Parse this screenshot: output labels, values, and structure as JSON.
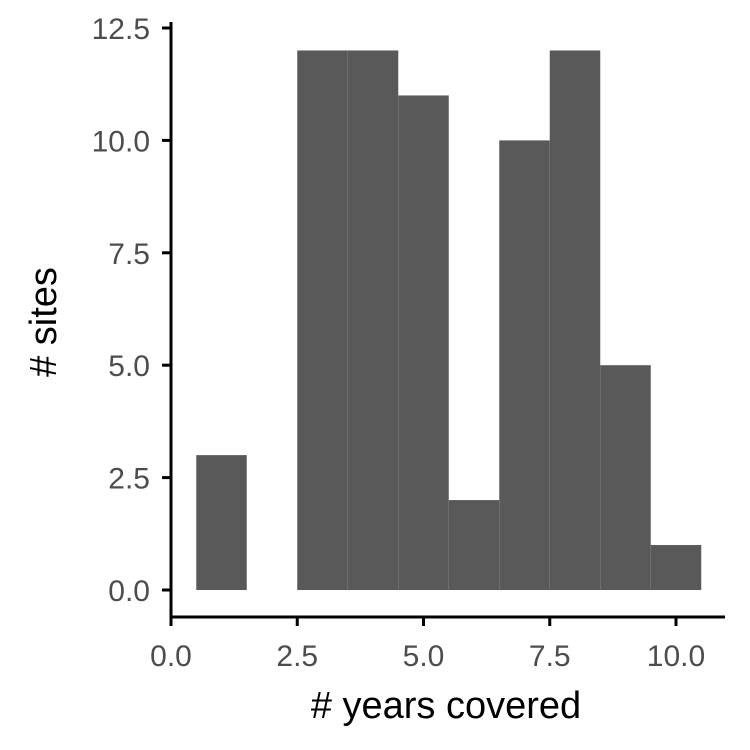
{
  "chart_data": {
    "type": "bar",
    "histogram": true,
    "bins": [
      {
        "x0": 0.5,
        "x1": 1.5,
        "count": 3
      },
      {
        "x0": 1.5,
        "x1": 2.5,
        "count": 0
      },
      {
        "x0": 2.5,
        "x1": 3.5,
        "count": 12
      },
      {
        "x0": 3.5,
        "x1": 4.5,
        "count": 12
      },
      {
        "x0": 4.5,
        "x1": 5.5,
        "count": 11
      },
      {
        "x0": 5.5,
        "x1": 6.5,
        "count": 2
      },
      {
        "x0": 6.5,
        "x1": 7.5,
        "count": 10
      },
      {
        "x0": 7.5,
        "x1": 8.5,
        "count": 12
      },
      {
        "x0": 8.5,
        "x1": 9.5,
        "count": 5
      },
      {
        "x0": 9.5,
        "x1": 10.5,
        "count": 1
      }
    ],
    "xlabel": "# years covered",
    "ylabel": "# sites",
    "xlim": [
      0,
      11
    ],
    "ylim": [
      -0.6,
      12.7
    ],
    "xticks": [
      "0.0",
      "2.5",
      "5.0",
      "7.5",
      "10.0"
    ],
    "yticks": [
      "0.0",
      "2.5",
      "5.0",
      "7.5",
      "10.0",
      "12.5"
    ],
    "bar_color": "#595959",
    "grid": false
  }
}
